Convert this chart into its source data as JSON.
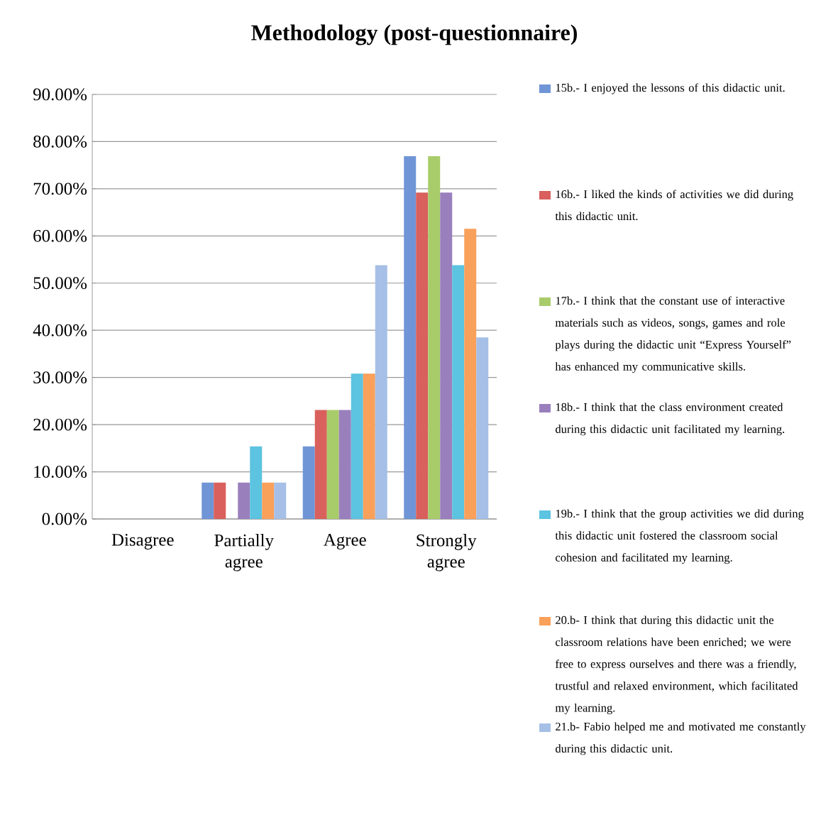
{
  "chart_data": {
    "type": "bar",
    "title": "Methodology (post-questionnaire)",
    "categories": [
      "Disagree",
      "Partially agree",
      "Agree",
      "Strongly agree"
    ],
    "series": [
      {
        "name": "15b.- I enjoyed the lessons of this didactic unit.",
        "color": "#6f95d6",
        "values": [
          0,
          7.7,
          15.4,
          76.9
        ]
      },
      {
        "name": "16b.- I liked the kinds of activities we did during this didactic unit.",
        "color": "#d9605c",
        "values": [
          0,
          7.7,
          23.1,
          69.2
        ]
      },
      {
        "name": "17b.- I think that the constant use of interactive materials such as videos, songs, games and role plays during the didactic unit “Express Yourself” has enhanced my communicative skills.",
        "color": "#a8cc6a",
        "values": [
          0,
          0,
          23.1,
          76.9
        ]
      },
      {
        "name": "18b.- I think that the class environment created during this didactic unit facilitated my learning.",
        "color": "#9a7fbd",
        "values": [
          0,
          7.7,
          23.1,
          69.2
        ]
      },
      {
        "name": "19b.- I think that the group activities we did during this didactic unit fostered the classroom social cohesion and facilitated my learning.",
        "color": "#5cc3e0",
        "values": [
          0,
          15.4,
          30.8,
          53.8
        ]
      },
      {
        "name": "20.b- I think that during this didactic unit the classroom relations have been enriched; we were free to express ourselves and there was a friendly, trustful and relaxed environment, which facilitated my learning.",
        "color": "#f9a05a",
        "values": [
          0,
          7.7,
          30.8,
          61.5
        ]
      },
      {
        "name": "21.b- Fabio helped me and motivated me constantly during this didactic unit.",
        "color": "#a6bfe6",
        "values": [
          0,
          7.7,
          53.8,
          38.5
        ]
      }
    ],
    "ylim": [
      0,
      90
    ],
    "yticks": [
      {
        "value": 0,
        "label": "0.00%"
      },
      {
        "value": 10,
        "label": "10.00%"
      },
      {
        "value": 20,
        "label": "20.00%"
      },
      {
        "value": 30,
        "label": "30.00%"
      },
      {
        "value": 40,
        "label": "40.00%"
      },
      {
        "value": 50,
        "label": "50.00%"
      },
      {
        "value": 60,
        "label": "60.00%"
      },
      {
        "value": 70,
        "label": "70.00%"
      },
      {
        "value": 80,
        "label": "80.00%"
      },
      {
        "value": 90,
        "label": "90.00%"
      }
    ],
    "grid": "y",
    "legend": "right"
  }
}
